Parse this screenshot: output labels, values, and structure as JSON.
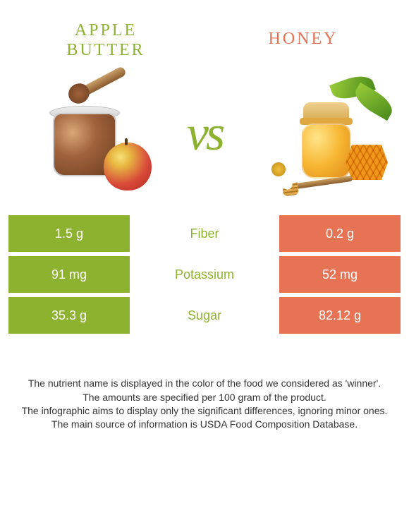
{
  "colors": {
    "left": "#8db230",
    "right": "#e57354",
    "mid_text_left": "#8db230",
    "mid_text_right": "#e57354",
    "background": "#ffffff"
  },
  "titles": {
    "left_line1": "APPLE",
    "left_line2": "BUTTER",
    "right": "HONEY"
  },
  "vs_label": "vs",
  "table": {
    "rows": [
      {
        "left": "1.5 g",
        "label": "Fiber",
        "right": "0.2 g",
        "winner": "left"
      },
      {
        "left": "91 mg",
        "label": "Potassium",
        "right": "52 mg",
        "winner": "left"
      },
      {
        "left": "35.3 g",
        "label": "Sugar",
        "right": "82.12 g",
        "winner": "left"
      }
    ]
  },
  "footnotes": [
    "The nutrient name is displayed in the color of the food we considered as 'winner'.",
    "The amounts are specified per 100 gram of the product.",
    "The infographic aims to display only the significant differences, ignoring minor ones.",
    "The main source of information is USDA Food Composition Database."
  ]
}
